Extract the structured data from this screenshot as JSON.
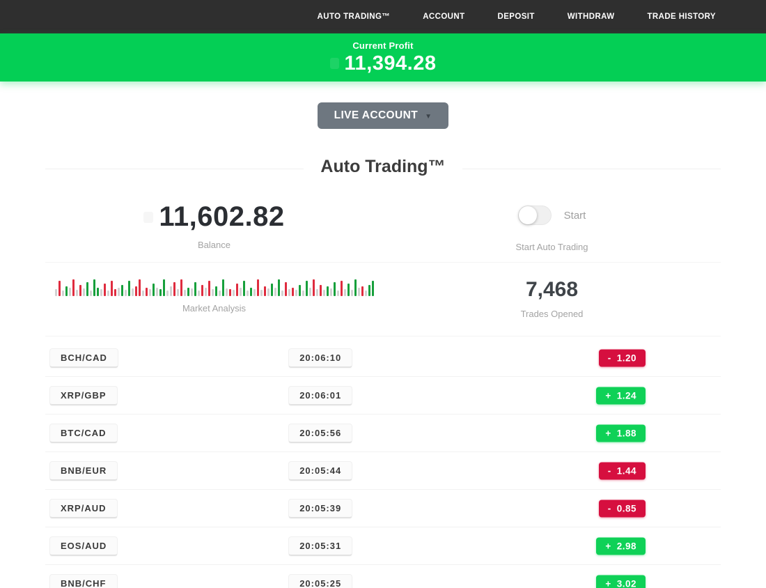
{
  "navbar": {
    "items": [
      {
        "label": "AUTO TRADING™"
      },
      {
        "label": "ACCOUNT"
      },
      {
        "label": "DEPOSIT"
      },
      {
        "label": "WITHDRAW"
      },
      {
        "label": "TRADE HISTORY"
      }
    ]
  },
  "profit_banner": {
    "label": "Current Profit",
    "value": "11,394.28"
  },
  "account_selector": {
    "label": "LIVE ACCOUNT",
    "caret": "▼"
  },
  "section": {
    "title": "Auto Trading™"
  },
  "stats": {
    "balance": {
      "value": "11,602.82",
      "label": "Balance"
    },
    "auto_trading": {
      "toggle_state": "off",
      "toggle_label": "Start",
      "label": "Start Auto Trading"
    },
    "market": {
      "label": "Market Analysis",
      "bars": [
        "n10",
        "r22",
        "n8",
        "g14",
        "n12",
        "r24",
        "n9",
        "r16",
        "n11",
        "g20",
        "n8",
        "g24",
        "g12",
        "n10",
        "r18",
        "n8",
        "r22",
        "r10",
        "n12",
        "g16",
        "n9",
        "g22",
        "n11",
        "r14",
        "r24",
        "n8",
        "r12",
        "n10",
        "g18",
        "n12",
        "g10",
        "g24",
        "n8",
        "n14",
        "r20",
        "n10",
        "r24",
        "n9",
        "g12",
        "n11",
        "g20",
        "n8",
        "r16",
        "n12",
        "r22",
        "n10",
        "g14",
        "n8",
        "g24",
        "n11",
        "r10",
        "n9",
        "r18",
        "n12",
        "g22",
        "n8",
        "g12",
        "n10",
        "r24",
        "n9",
        "r14",
        "n11",
        "g18",
        "n12",
        "g24",
        "n8",
        "r20",
        "n10",
        "r12",
        "n9",
        "g16",
        "n8",
        "g22",
        "n12",
        "r24",
        "n10",
        "r16",
        "n9",
        "g14",
        "n11",
        "g20",
        "n8",
        "r22",
        "n10",
        "g18",
        "n9",
        "g24",
        "n12",
        "r14",
        "n8",
        "g16",
        "g22"
      ]
    },
    "trades_opened": {
      "value": "7,468",
      "label": "Trades Opened"
    }
  },
  "trades": [
    {
      "pair": "BCH/CAD",
      "time": "20:06:10",
      "sign": "-",
      "amount": "1.20",
      "direction": "loss"
    },
    {
      "pair": "XRP/GBP",
      "time": "20:06:01",
      "sign": "+",
      "amount": "1.24",
      "direction": "gain"
    },
    {
      "pair": "BTC/CAD",
      "time": "20:05:56",
      "sign": "+",
      "amount": "1.88",
      "direction": "gain"
    },
    {
      "pair": "BNB/EUR",
      "time": "20:05:44",
      "sign": "-",
      "amount": "1.44",
      "direction": "loss"
    },
    {
      "pair": "XRP/AUD",
      "time": "20:05:39",
      "sign": "-",
      "amount": "0.85",
      "direction": "loss"
    },
    {
      "pair": "EOS/AUD",
      "time": "20:05:31",
      "sign": "+",
      "amount": "2.98",
      "direction": "gain"
    },
    {
      "pair": "BNB/CHF",
      "time": "20:05:25",
      "sign": "+",
      "amount": "3.02",
      "direction": "gain"
    }
  ],
  "colors": {
    "navbar_bg": "#2f2f2f",
    "banner_green": "#04cf55",
    "badge_green": "#0fd157",
    "badge_red": "#d60f3f",
    "button_gray": "#6e7780",
    "bar_gray": "#d2d2d2",
    "bar_red": "#df2c3f",
    "bar_green": "#17a03c"
  }
}
